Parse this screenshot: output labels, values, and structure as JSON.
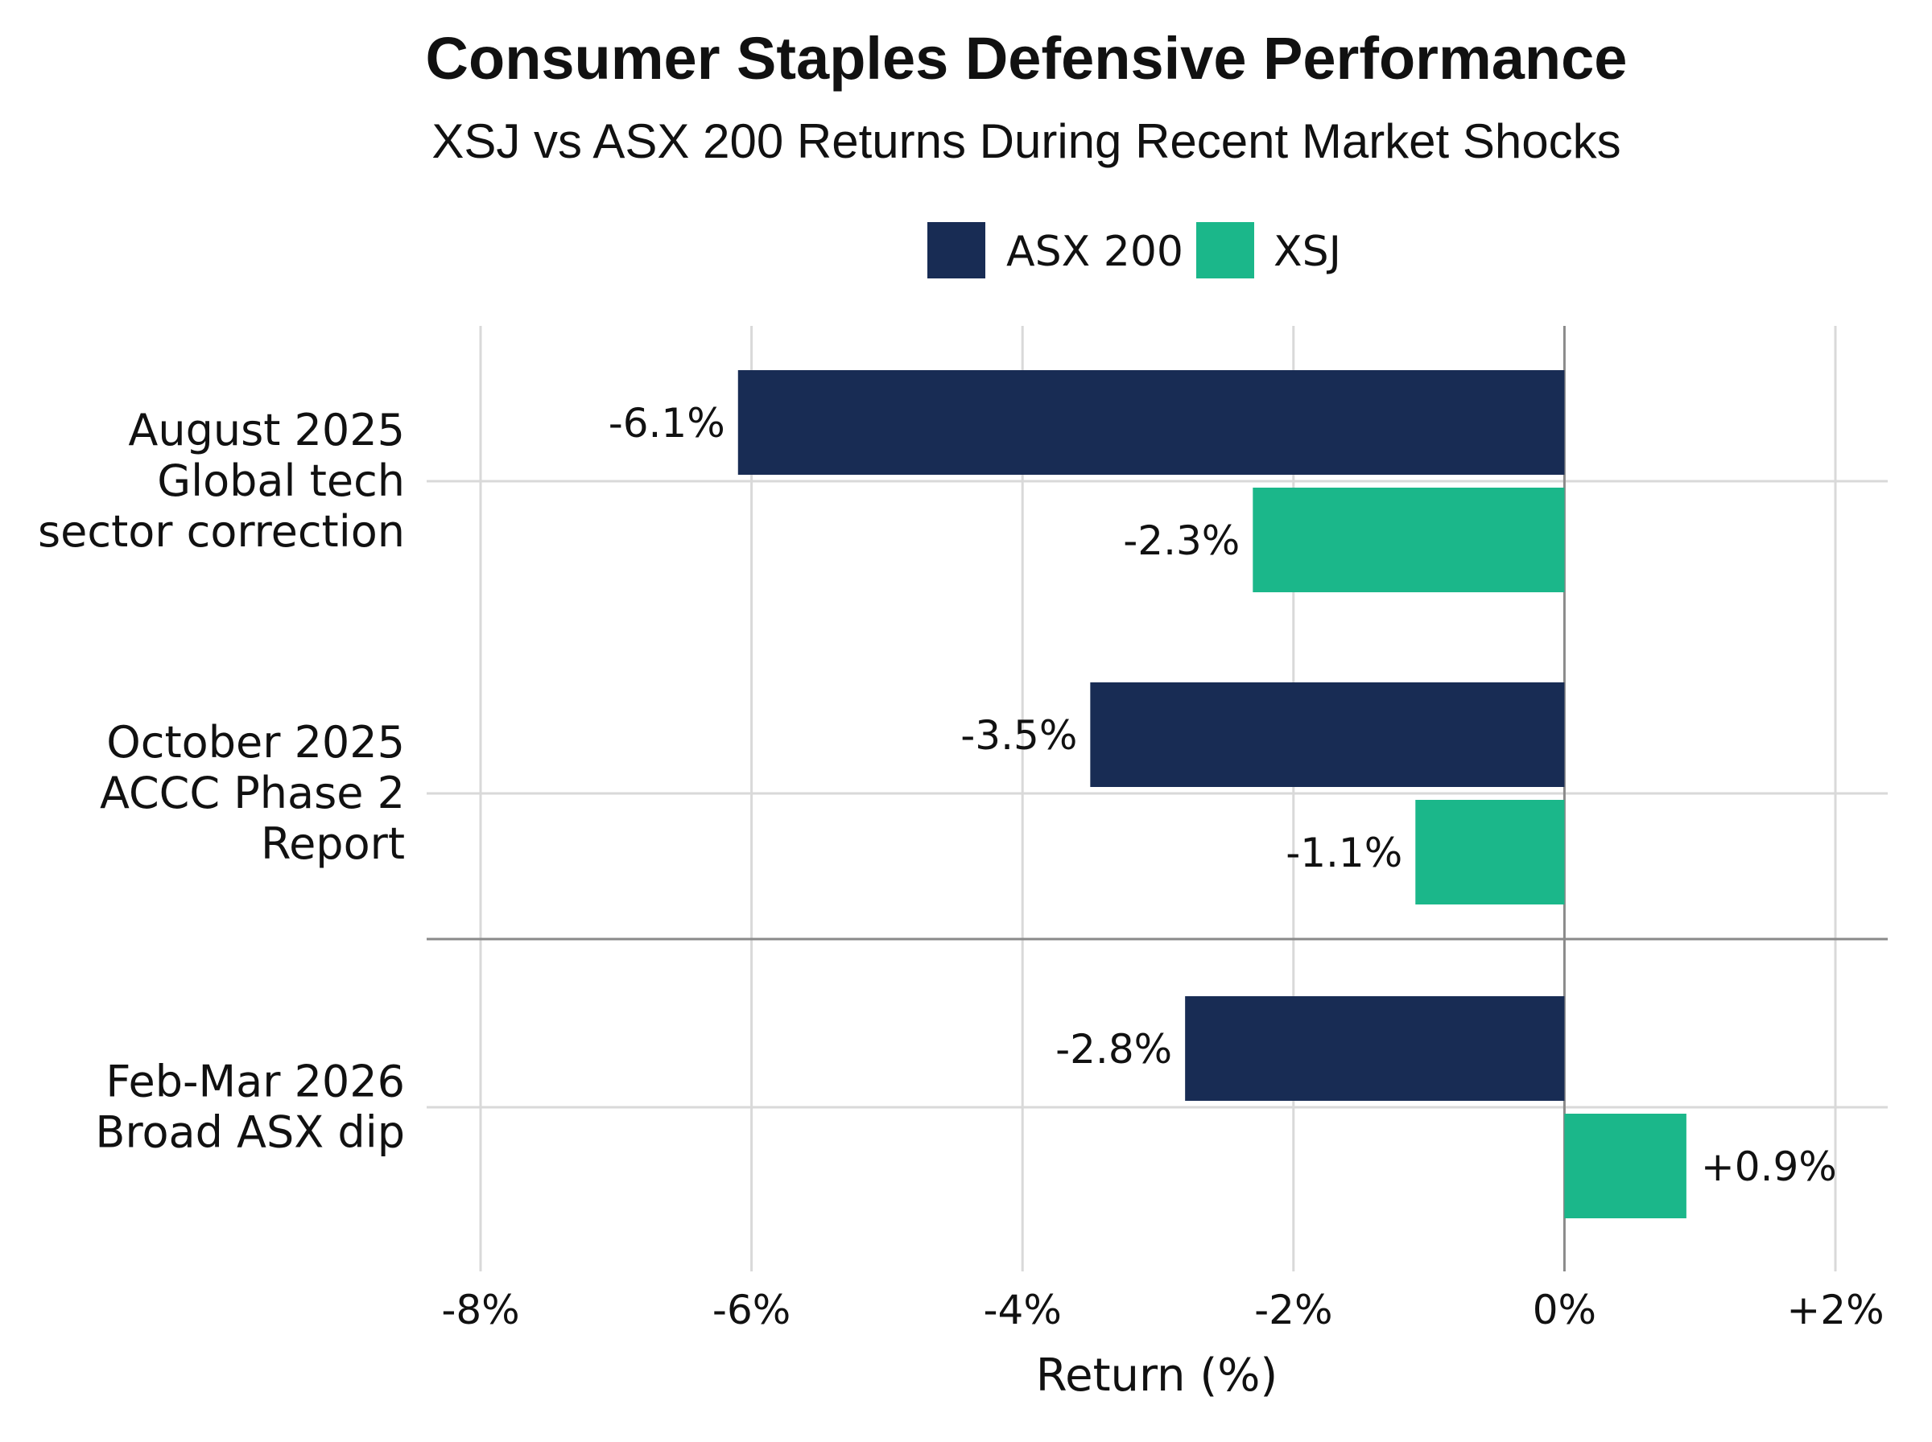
{
  "colors": {
    "asx200": "#182c54",
    "xsj": "#1bb78a"
  },
  "chart_data": {
    "type": "bar",
    "orientation": "horizontal",
    "title": "Consumer Staples Defensive Performance",
    "subtitle": "XSJ vs ASX 200 Returns During Recent Market Shocks",
    "xlabel": "Return (%)",
    "ylabel": "",
    "xlim": [
      -8,
      2
    ],
    "xticks": [
      -8,
      -6,
      -4,
      -2,
      0,
      2
    ],
    "xtick_labels": [
      "-8%",
      "-6%",
      "-4%",
      "-2%",
      "0%",
      "+2%"
    ],
    "grid": true,
    "legend_position": "top-center",
    "categories": [
      [
        "August 2025",
        "Global tech",
        "sector correction"
      ],
      [
        "October 2025",
        "ACCC Phase 2",
        "Report"
      ],
      [
        "Feb-Mar 2026",
        "Broad ASX dip"
      ]
    ],
    "series": [
      {
        "name": "ASX 200",
        "color_key": "asx200",
        "values": [
          -6.1,
          -3.5,
          -2.8
        ],
        "labels": [
          "-6.1%",
          "-3.5%",
          "-2.8%"
        ]
      },
      {
        "name": "XSJ",
        "color_key": "xsj",
        "values": [
          -2.3,
          -1.1,
          0.9
        ],
        "labels": [
          "-2.3%",
          "-1.1%",
          "+0.9%"
        ]
      }
    ]
  }
}
